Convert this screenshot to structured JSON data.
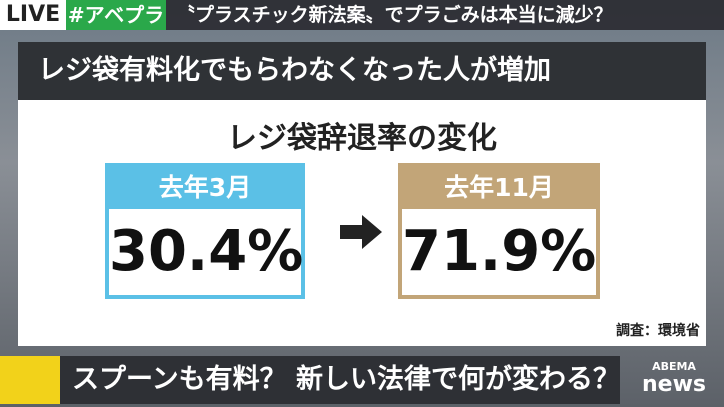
{
  "top_bar": {
    "live": "LIVE",
    "hashtag": "#アベプラ",
    "headline": "〝プラスチック新法案〟でプラごみは本当に減少？"
  },
  "panel": {
    "header": "レジ袋有料化でもらわなくなった人が増加",
    "title": "レジ袋辞退率の変化",
    "before": {
      "label": "去年3月",
      "value": "30.4%"
    },
    "after": {
      "label": "去年11月",
      "value": "71.9%"
    },
    "source": "調査：環境省"
  },
  "bottom_bar": {
    "caption": "スプーンも有料？ 新しい法律で何が変わる？",
    "logo_top": "ABEMA",
    "logo_bottom": "news"
  }
}
